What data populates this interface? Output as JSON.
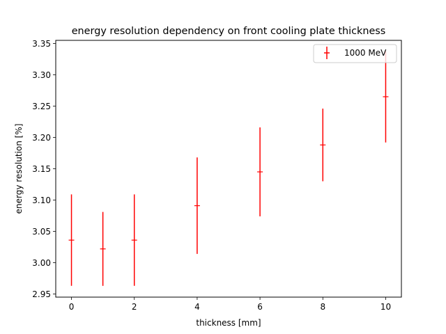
{
  "chart_data": {
    "type": "scatter",
    "title": "energy resolution dependency on front cooling plate thickness",
    "xlabel": "thickness [mm]",
    "ylabel": "energy resolution [%]",
    "xlim": [
      -0.5,
      10.5
    ],
    "ylim": [
      2.945,
      3.355
    ],
    "xticks": [
      0,
      2,
      4,
      6,
      8,
      10
    ],
    "yticks": [
      2.95,
      3.0,
      3.05,
      3.1,
      3.15,
      3.2,
      3.25,
      3.3,
      3.35
    ],
    "ytick_labels": [
      "2.95",
      "3.00",
      "3.05",
      "3.10",
      "3.15",
      "3.20",
      "3.25",
      "3.30",
      "3.35"
    ],
    "grid": false,
    "legend_position": "top-right",
    "series": [
      {
        "name": "1000 MeV",
        "color": "#ff0000",
        "marker": "plus",
        "points": [
          {
            "x": 0,
            "y": 3.036,
            "err": 0.073
          },
          {
            "x": 1,
            "y": 3.022,
            "err": 0.059
          },
          {
            "x": 2,
            "y": 3.036,
            "err": 0.073
          },
          {
            "x": 4,
            "y": 3.091,
            "err": 0.077
          },
          {
            "x": 6,
            "y": 3.145,
            "err": 0.071
          },
          {
            "x": 8,
            "y": 3.188,
            "err": 0.058
          },
          {
            "x": 10,
            "y": 3.265,
            "err": 0.073
          }
        ]
      }
    ]
  }
}
